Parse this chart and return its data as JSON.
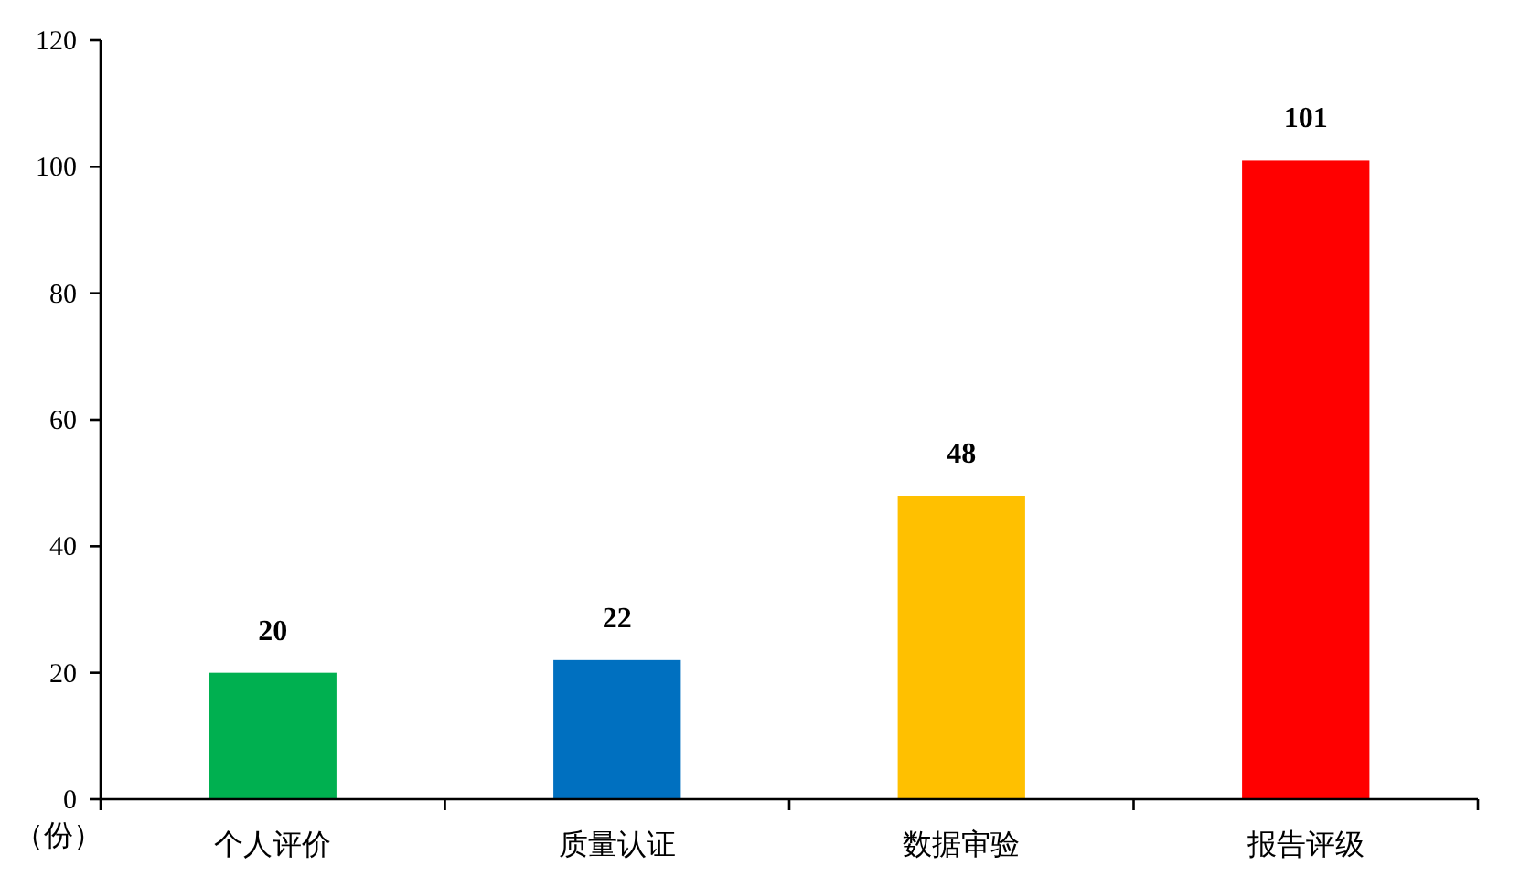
{
  "chart_data": {
    "type": "bar",
    "ylabel": "（份）",
    "categories": [
      "个人评价",
      "质量认证",
      "数据审验",
      "报告评级"
    ],
    "values": [
      20,
      22,
      48,
      101
    ],
    "colors": [
      "#00b050",
      "#0070c0",
      "#ffc000",
      "#ff0000"
    ],
    "ylim": [
      0,
      120
    ],
    "yticks": [
      0,
      20,
      40,
      60,
      80,
      100,
      120
    ],
    "data_labels": true
  }
}
